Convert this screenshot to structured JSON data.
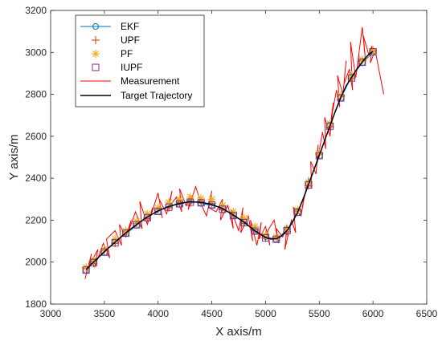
{
  "chart_data": {
    "type": "line",
    "xlabel": "X axis/m",
    "ylabel": "Y axis/m",
    "xlim": [
      3000,
      6500
    ],
    "ylim": [
      1800,
      3200
    ],
    "xticks": [
      3000,
      3500,
      4000,
      4500,
      5000,
      5500,
      6000,
      6500
    ],
    "yticks": [
      1800,
      2000,
      2200,
      2400,
      2600,
      2800,
      3000,
      3200
    ],
    "xtick_labels": [
      "3000",
      "3500",
      "4000",
      "4500",
      "5000",
      "5500",
      "6000",
      "6500"
    ],
    "ytick_labels": [
      "1800",
      "2000",
      "2200",
      "2400",
      "2600",
      "2800",
      "3000",
      "3200"
    ],
    "grid": false,
    "legend_position": "top-left",
    "trajectory_x": [
      3330,
      3400,
      3500,
      3600,
      3700,
      3800,
      3900,
      4000,
      4100,
      4200,
      4300,
      4400,
      4500,
      4600,
      4700,
      4800,
      4900,
      5000,
      5050,
      5100,
      5150,
      5200,
      5250,
      5300,
      5350,
      5400,
      5450,
      5500,
      5550,
      5600,
      5650,
      5700,
      5750,
      5800,
      5850,
      5900,
      5950,
      6000
    ],
    "trajectory_y": [
      1965,
      2000,
      2050,
      2095,
      2140,
      2180,
      2215,
      2245,
      2265,
      2280,
      2288,
      2285,
      2275,
      2255,
      2225,
      2190,
      2150,
      2118,
      2110,
      2112,
      2125,
      2150,
      2190,
      2240,
      2300,
      2370,
      2440,
      2510,
      2580,
      2650,
      2720,
      2785,
      2840,
      2880,
      2920,
      2955,
      2985,
      3005
    ],
    "series": [
      {
        "name": "EKF",
        "marker": "circle",
        "color": "#0072BD",
        "x": [
          3330,
          3400,
          3500,
          3600,
          3700,
          3800,
          3900,
          4000,
          4100,
          4200,
          4300,
          4400,
          4500,
          4600,
          4700,
          4800,
          4900,
          5000,
          5100,
          5200,
          5300,
          5400,
          5500,
          5600,
          5700,
          5800,
          5900,
          6000
        ],
        "y": [
          1960,
          2005,
          2045,
          2100,
          2135,
          2175,
          2220,
          2240,
          2270,
          2275,
          2292,
          2280,
          2270,
          2260,
          2220,
          2195,
          2145,
          2122,
          2108,
          2155,
          2235,
          2375,
          2505,
          2655,
          2780,
          2885,
          2950,
          3000
        ]
      },
      {
        "name": "UPF",
        "marker": "plus",
        "color": "#D95319",
        "x": [
          3330,
          3400,
          3500,
          3600,
          3700,
          3800,
          3900,
          4000,
          4100,
          4200,
          4300,
          4400,
          4500,
          4600,
          4700,
          4800,
          4900,
          5000,
          5100,
          5200,
          5300,
          5400,
          5500,
          5600,
          5700,
          5800,
          5900,
          6000
        ],
        "y": [
          1970,
          1995,
          2055,
          2090,
          2145,
          2185,
          2210,
          2250,
          2260,
          2285,
          2284,
          2290,
          2280,
          2250,
          2230,
          2185,
          2155,
          2115,
          2115,
          2145,
          2245,
          2365,
          2515,
          2645,
          2790,
          2875,
          2960,
          3010
        ]
      },
      {
        "name": "PF",
        "marker": "asterisk",
        "color": "#EDB120",
        "x": [
          3330,
          3400,
          3500,
          3600,
          3700,
          3800,
          3900,
          4000,
          4100,
          4200,
          4300,
          4400,
          4500,
          4600,
          4700,
          4800,
          4900,
          5000,
          5100,
          5200,
          5300,
          5400,
          5500,
          5600,
          5700,
          5800,
          5900,
          6000
        ],
        "y": [
          1975,
          2010,
          2060,
          2110,
          2150,
          2195,
          2230,
          2260,
          2285,
          2300,
          2310,
          2305,
          2300,
          2270,
          2240,
          2210,
          2170,
          2130,
          2120,
          2160,
          2250,
          2380,
          2520,
          2660,
          2795,
          2890,
          2965,
          3005
        ]
      },
      {
        "name": "IUPF",
        "marker": "square",
        "color": "#7E2F8E",
        "x": [
          3330,
          3400,
          3500,
          3600,
          3700,
          3800,
          3900,
          4000,
          4100,
          4200,
          4300,
          4400,
          4500,
          4600,
          4700,
          4800,
          4900,
          5000,
          5100,
          5200,
          5300,
          5400,
          5500,
          5600,
          5700,
          5800,
          5900,
          6000
        ],
        "y": [
          1962,
          1998,
          2048,
          2092,
          2138,
          2178,
          2212,
          2242,
          2262,
          2278,
          2286,
          2283,
          2273,
          2252,
          2222,
          2188,
          2148,
          2116,
          2109,
          2150,
          2238,
          2368,
          2508,
          2648,
          2783,
          2878,
          2953,
          3003
        ]
      }
    ],
    "measurement": {
      "name": "Measurement",
      "color": "#FF0000",
      "x": [
        3320,
        3380,
        3360,
        3440,
        3410,
        3490,
        3550,
        3520,
        3600,
        3660,
        3640,
        3700,
        3750,
        3720,
        3790,
        3850,
        3830,
        3900,
        3950,
        3920,
        4000,
        4040,
        4010,
        4080,
        4130,
        4100,
        4170,
        4220,
        4200,
        4260,
        4300,
        4280,
        4350,
        4400,
        4380,
        4450,
        4500,
        4470,
        4540,
        4600,
        4580,
        4650,
        4700,
        4680,
        4750,
        4790,
        4770,
        4840,
        4880,
        4860,
        4920,
        4960,
        4940,
        5000,
        5040,
        5020,
        5080,
        5120,
        5100,
        5160,
        5200,
        5180,
        5240,
        5280,
        5260,
        5330,
        5360,
        5340,
        5400,
        5430,
        5420,
        5470,
        5490,
        5480,
        5530,
        5560,
        5550,
        5600,
        5630,
        5610,
        5660,
        5690,
        5670,
        5720,
        5750,
        5730,
        5780,
        5810,
        5790,
        5840,
        5870,
        5850,
        5900,
        5930,
        5910,
        5960,
        5990,
        5975,
        6020,
        6100
      ],
      "y": [
        1920,
        2040,
        1985,
        2060,
        1975,
        2090,
        2020,
        2110,
        2150,
        2080,
        2180,
        2120,
        2200,
        2140,
        2240,
        2160,
        2290,
        2180,
        2260,
        2200,
        2330,
        2210,
        2300,
        2230,
        2340,
        2260,
        2310,
        2240,
        2350,
        2270,
        2320,
        2250,
        2360,
        2280,
        2300,
        2220,
        2340,
        2260,
        2240,
        2300,
        2200,
        2270,
        2160,
        2250,
        2150,
        2260,
        2140,
        2220,
        2100,
        2200,
        2080,
        2190,
        2110,
        2170,
        2080,
        2150,
        2200,
        2090,
        2160,
        2120,
        2180,
        2060,
        2200,
        2140,
        2260,
        2220,
        2310,
        2260,
        2400,
        2350,
        2480,
        2420,
        2560,
        2470,
        2620,
        2540,
        2690,
        2600,
        2760,
        2680,
        2820,
        2740,
        2890,
        2800,
        2960,
        2850,
        2920,
        2820,
        3050,
        2880,
        2990,
        2920,
        3120,
        2960,
        3080,
        2990,
        3030,
        2950,
        3010,
        2800
      ]
    },
    "target": {
      "name": "Target Trajectory",
      "color": "#000000"
    }
  }
}
